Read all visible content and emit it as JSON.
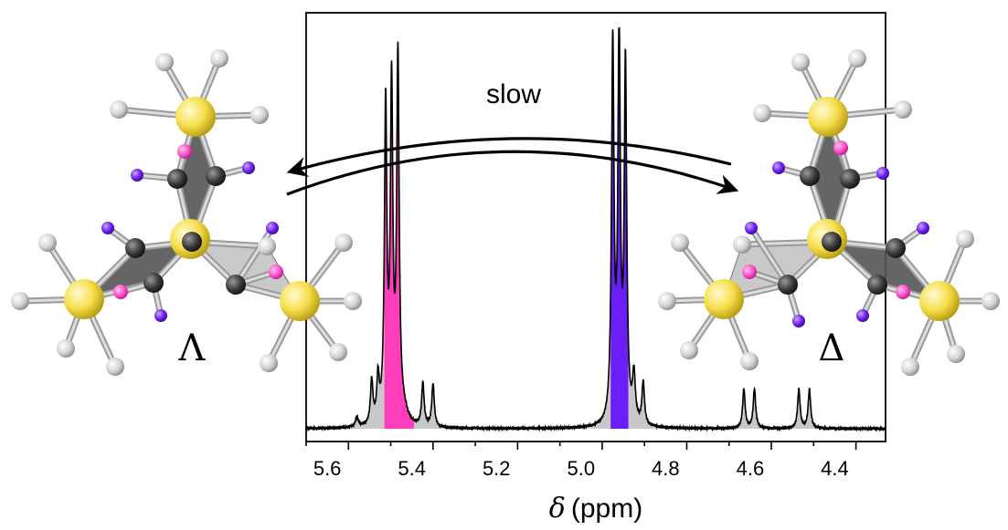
{
  "chart_data": {
    "type": "line",
    "xlabel_symbol": "δ",
    "xlabel_unit": "(ppm)",
    "xlim": [
      5.65,
      4.28
    ],
    "ylim": [
      0,
      1.0
    ],
    "x_inverted": true,
    "x_ticks": [
      5.6,
      5.4,
      5.2,
      5.0,
      4.8,
      4.6,
      4.4
    ],
    "x_tick_labels": [
      "5.6",
      "5.4",
      "5.2",
      "5.0",
      "4.8",
      "4.6",
      "4.4"
    ],
    "grid": false,
    "annotations": {
      "arrow_label": "slow",
      "left_isomer": "Λ",
      "right_isomer": "Δ"
    },
    "peaks": [
      {
        "x": 5.53,
        "height": 0.025,
        "width": 0.004
      },
      {
        "x": 5.495,
        "height": 0.11,
        "width": 0.0035
      },
      {
        "x": 5.48,
        "height": 0.11,
        "width": 0.0035
      },
      {
        "x": 5.462,
        "height": 0.8,
        "width": 0.0035,
        "fill": "#ff3ebd"
      },
      {
        "x": 5.448,
        "height": 0.84,
        "width": 0.0035,
        "fill": "#ff3ebd"
      },
      {
        "x": 5.433,
        "height": 0.92,
        "width": 0.0035,
        "fill": "#ff3ebd"
      },
      {
        "x": 5.42,
        "height": 0.03,
        "width": 0.012
      },
      {
        "x": 5.374,
        "height": 0.11,
        "width": 0.0035
      },
      {
        "x": 5.35,
        "height": 0.11,
        "width": 0.0035
      },
      {
        "x": 4.925,
        "height": 0.96,
        "width": 0.0035,
        "fill": "#6d1df5"
      },
      {
        "x": 4.91,
        "height": 0.98,
        "width": 0.0035,
        "fill": "#6d1df5"
      },
      {
        "x": 4.895,
        "height": 0.9,
        "width": 0.0035,
        "fill": "#6d1df5"
      },
      {
        "x": 4.875,
        "height": 0.12,
        "width": 0.004
      },
      {
        "x": 4.853,
        "height": 0.11,
        "width": 0.0035
      },
      {
        "x": 4.615,
        "height": 0.1,
        "width": 0.0035
      },
      {
        "x": 4.59,
        "height": 0.1,
        "width": 0.0035
      },
      {
        "x": 4.485,
        "height": 0.1,
        "width": 0.0035
      },
      {
        "x": 4.46,
        "height": 0.1,
        "width": 0.0035
      }
    ],
    "highlight_regions": [
      {
        "x_from": 5.465,
        "x_to": 5.395,
        "color": "#ff3ebd"
      },
      {
        "x_from": 4.93,
        "x_to": 4.888,
        "color": "#6d1df5"
      }
    ],
    "colors": {
      "trace": "#000000",
      "peak_fill": "#c8c8c8",
      "magenta": "#ff3ebd",
      "violet": "#6d1df5"
    }
  },
  "molecule": {
    "colors": {
      "metal": "#f6de4c",
      "carbon": "#3a3a3a",
      "hydrogen": "#d2d2d2",
      "magenta_h": "#ff4fc8",
      "violet_h": "#6d1df5",
      "ring_dark": "#555555",
      "ring_light": "#c4c4c4"
    }
  }
}
